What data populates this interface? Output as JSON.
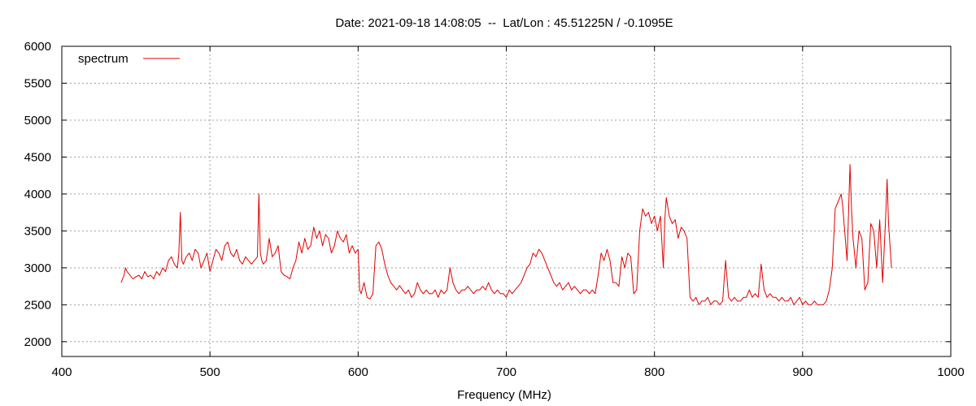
{
  "chart_data": {
    "type": "line",
    "title": "Date: 2021-09-18 14:08:05  --  Lat/Lon : 45.51225N / -0.1095E",
    "xlabel": "Frequency (MHz)",
    "ylabel": "",
    "xlim": [
      400,
      1000
    ],
    "ylim": [
      1800,
      6000
    ],
    "xticks": [
      400,
      500,
      600,
      700,
      800,
      900,
      1000
    ],
    "yticks": [
      2000,
      2500,
      3000,
      3500,
      4000,
      4500,
      5000,
      5500,
      6000
    ],
    "grid": true,
    "legend": {
      "position": "top-left",
      "entries": [
        "spectrum"
      ]
    },
    "colors": {
      "spectrum": "#e00000",
      "grid": "#a0a0a0",
      "axis": "#000000"
    },
    "series": [
      {
        "name": "spectrum",
        "x": [
          440,
          441,
          442,
          443,
          444,
          446,
          448,
          450,
          452,
          454,
          456,
          458,
          460,
          462,
          464,
          466,
          468,
          470,
          472,
          474,
          476,
          478,
          479,
          480,
          481,
          482,
          484,
          486,
          488,
          490,
          492,
          494,
          496,
          498,
          500,
          502,
          504,
          506,
          508,
          510,
          512,
          514,
          516,
          518,
          520,
          522,
          524,
          526,
          528,
          530,
          532,
          533,
          534,
          535,
          536,
          538,
          540,
          542,
          544,
          546,
          548,
          550,
          552,
          554,
          556,
          558,
          560,
          562,
          564,
          566,
          568,
          570,
          572,
          574,
          576,
          578,
          580,
          582,
          584,
          586,
          588,
          590,
          592,
          594,
          596,
          598,
          600,
          601,
          602,
          604,
          606,
          608,
          610,
          612,
          614,
          616,
          618,
          620,
          622,
          624,
          626,
          628,
          630,
          632,
          634,
          636,
          638,
          640,
          642,
          644,
          646,
          648,
          650,
          652,
          654,
          656,
          658,
          660,
          662,
          664,
          666,
          668,
          670,
          672,
          674,
          676,
          678,
          680,
          682,
          684,
          686,
          688,
          690,
          692,
          694,
          696,
          698,
          700,
          702,
          704,
          706,
          708,
          710,
          712,
          714,
          716,
          718,
          720,
          722,
          724,
          726,
          728,
          730,
          732,
          734,
          736,
          738,
          740,
          742,
          744,
          746,
          748,
          750,
          752,
          754,
          756,
          758,
          760,
          762,
          764,
          766,
          768,
          770,
          772,
          774,
          776,
          778,
          780,
          782,
          784,
          786,
          788,
          790,
          792,
          794,
          796,
          798,
          800,
          802,
          804,
          806,
          807,
          808,
          810,
          812,
          814,
          816,
          818,
          820,
          822,
          824,
          826,
          828,
          830,
          832,
          834,
          836,
          838,
          840,
          842,
          844,
          846,
          848,
          850,
          852,
          854,
          856,
          858,
          860,
          862,
          864,
          866,
          868,
          870,
          872,
          874,
          876,
          878,
          880,
          882,
          884,
          886,
          888,
          890,
          892,
          894,
          896,
          898,
          900,
          902,
          904,
          906,
          908,
          910,
          912,
          914,
          916,
          918,
          920,
          922,
          924,
          926,
          927,
          928,
          930,
          932,
          933,
          934,
          936,
          938,
          940,
          942,
          944,
          946,
          948,
          950,
          952,
          954,
          956,
          957,
          958,
          960
        ],
        "y": [
          2800,
          2850,
          2900,
          3000,
          2950,
          2900,
          2850,
          2880,
          2900,
          2850,
          2950,
          2880,
          2900,
          2850,
          2950,
          2900,
          3000,
          2950,
          3100,
          3150,
          3050,
          3000,
          3200,
          3750,
          3100,
          3050,
          3150,
          3200,
          3100,
          3250,
          3200,
          3000,
          3100,
          3200,
          2950,
          3100,
          3250,
          3200,
          3100,
          3300,
          3350,
          3200,
          3150,
          3250,
          3100,
          3050,
          3150,
          3100,
          3050,
          3100,
          3150,
          4000,
          3200,
          3100,
          3050,
          3100,
          3400,
          3150,
          3200,
          3300,
          2950,
          2900,
          2880,
          2850,
          3000,
          3100,
          3350,
          3200,
          3400,
          3250,
          3300,
          3550,
          3400,
          3500,
          3300,
          3450,
          3400,
          3200,
          3300,
          3500,
          3400,
          3350,
          3450,
          3200,
          3300,
          3200,
          3250,
          2700,
          2650,
          2800,
          2600,
          2580,
          2650,
          3300,
          3350,
          3250,
          3050,
          2900,
          2800,
          2750,
          2700,
          2760,
          2700,
          2650,
          2700,
          2600,
          2650,
          2800,
          2700,
          2650,
          2700,
          2650,
          2650,
          2700,
          2600,
          2700,
          2650,
          2700,
          3000,
          2800,
          2700,
          2650,
          2700,
          2700,
          2750,
          2700,
          2650,
          2700,
          2700,
          2750,
          2700,
          2800,
          2700,
          2650,
          2700,
          2650,
          2650,
          2600,
          2700,
          2650,
          2700,
          2750,
          2800,
          2900,
          3000,
          3050,
          3200,
          3150,
          3250,
          3200,
          3100,
          3000,
          2900,
          2800,
          2750,
          2800,
          2700,
          2750,
          2800,
          2700,
          2750,
          2700,
          2650,
          2700,
          2700,
          2650,
          2700,
          2650,
          2900,
          3200,
          3100,
          3250,
          3100,
          2800,
          2800,
          2750,
          3150,
          3000,
          3200,
          3150,
          2650,
          2700,
          3500,
          3800,
          3700,
          3750,
          3600,
          3700,
          3500,
          3700,
          3000,
          3650,
          3950,
          3700,
          3600,
          3650,
          3400,
          3550,
          3500,
          3400,
          2600,
          2550,
          2600,
          2500,
          2550,
          2550,
          2600,
          2500,
          2550,
          2550,
          2500,
          2550,
          3100,
          2600,
          2550,
          2600,
          2550,
          2550,
          2600,
          2600,
          2700,
          2600,
          2650,
          2600,
          3050,
          2700,
          2600,
          2650,
          2600,
          2600,
          2550,
          2600,
          2550,
          2550,
          2600,
          2500,
          2550,
          2600,
          2500,
          2550,
          2500,
          2500,
          2550,
          2500,
          2500,
          2500,
          2550,
          2700,
          3000,
          3800,
          3900,
          4000,
          3850,
          3600,
          3100,
          4400,
          3800,
          3400,
          3000,
          3500,
          3400,
          2700,
          2800,
          3600,
          3500,
          3000,
          3650,
          2800,
          3650,
          4200,
          3600,
          3000
        ]
      }
    ]
  }
}
